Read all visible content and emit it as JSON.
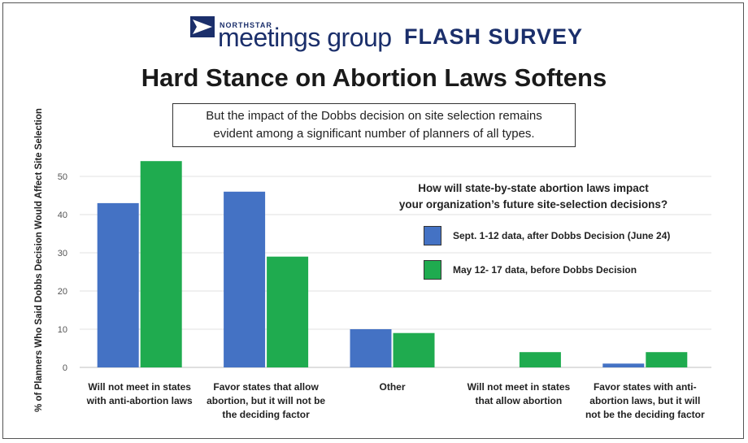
{
  "header": {
    "logo_small": "NORTHSTAR",
    "logo_main": "meetings group",
    "badge": "FLASH SURVEY"
  },
  "title": "Hard Stance on Abortion Laws Softens",
  "callout": {
    "line1": "But the impact of the Dobbs decision on site selection remains",
    "line2": "evident among a significant number of planners of all types."
  },
  "colors": {
    "series1": "#4472c4",
    "series2": "#1fab4f",
    "brand": "#1b2f6b"
  },
  "chart_data": {
    "type": "bar",
    "title": "",
    "xlabel": "",
    "ylabel": "% of Planners Who Said Dobbs Decision Would Affect Site Selection",
    "ylim": [
      0,
      50
    ],
    "yticks": [
      0,
      10,
      20,
      30,
      40,
      50
    ],
    "grid": true,
    "categories": [
      [
        "Will not meet in states",
        "with anti-abortion laws"
      ],
      [
        "Favor states that allow",
        "abortion, but it will not be",
        "the deciding factor"
      ],
      [
        "Other"
      ],
      [
        "Will not meet in states",
        "that allow abortion"
      ],
      [
        "Favor states with anti-",
        "abortion laws, but it will",
        "not be the deciding factor"
      ]
    ],
    "legend_title": [
      "How will state-by-state abortion laws impact",
      "your organization’s future site-selection decisions?"
    ],
    "legend_position": "right",
    "series": [
      {
        "name": "Sept. 1-12 data, after Dobbs Decision (June 24)",
        "values": [
          43,
          46,
          10,
          0,
          1
        ]
      },
      {
        "name": "May 12- 17 data, before Dobbs Decision",
        "values": [
          54,
          29,
          9,
          4,
          4
        ]
      }
    ]
  }
}
